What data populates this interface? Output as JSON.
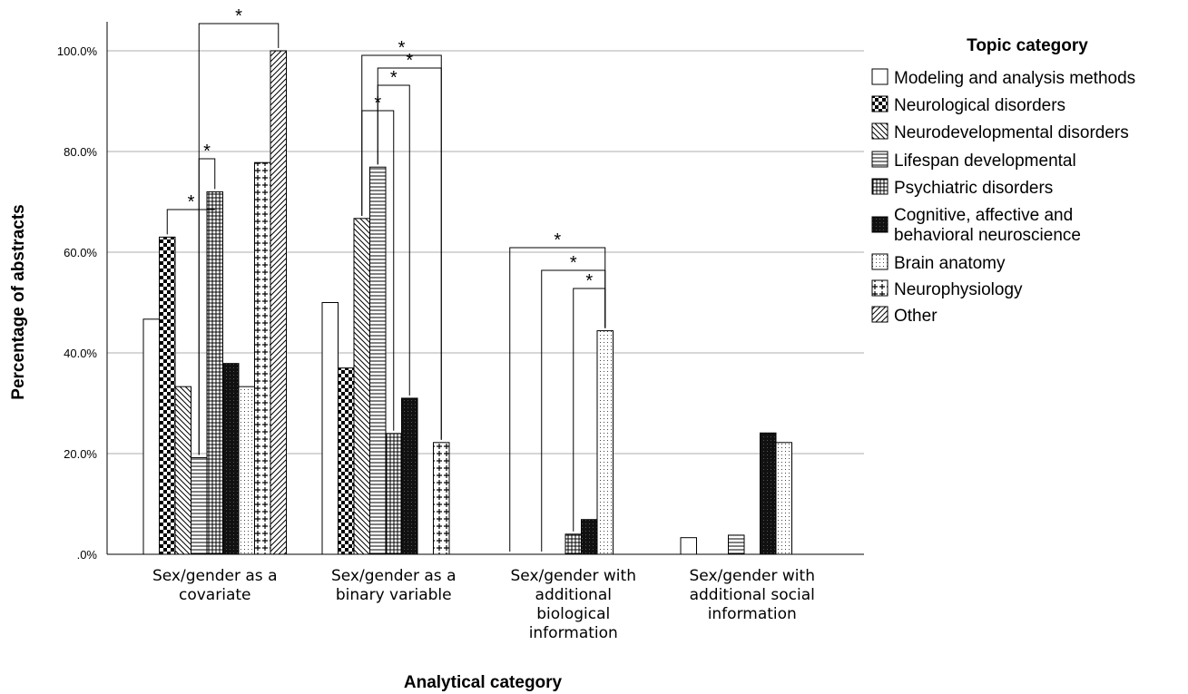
{
  "chart_data": {
    "type": "bar",
    "xlabel": "Analytical category",
    "ylabel": "Percentage of abstracts",
    "ylim": [
      0,
      100
    ],
    "yticks": [
      ".0%",
      "20.0%",
      "40.0%",
      "60.0%",
      "80.0%",
      "100.0%"
    ],
    "grid": true,
    "legend_title": "Topic category",
    "legend_position": "right",
    "categories": [
      [
        "Sex/gender as a",
        "covariate"
      ],
      [
        "Sex/gender as a",
        "binary variable"
      ],
      [
        "Sex/gender with",
        "additional",
        "biological",
        "information"
      ],
      [
        "Sex/gender with",
        "additional social",
        "information"
      ]
    ],
    "series": [
      {
        "name": "Modeling and analysis methods",
        "pattern": "plain",
        "values": [
          46.7,
          50.0,
          0,
          3.3
        ]
      },
      {
        "name": "Neurological disorders",
        "pattern": "checker",
        "values": [
          63.0,
          37.0,
          0,
          0
        ]
      },
      {
        "name": "Neurodevelopmental disorders",
        "pattern": "diag-back",
        "values": [
          33.3,
          66.7,
          0,
          0
        ]
      },
      {
        "name": "Lifespan developmental",
        "pattern": "horiz",
        "values": [
          19.2,
          76.9,
          0,
          3.8
        ]
      },
      {
        "name": "Psychiatric disorders",
        "pattern": "grid",
        "values": [
          72.0,
          24.0,
          4.0,
          0
        ]
      },
      {
        "name": "Cognitive, affective and behavioral neuroscience",
        "label_lines": [
          "Cognitive, affective and",
          "behavioral neuroscience"
        ],
        "pattern": "dark",
        "values": [
          37.9,
          31.0,
          6.9,
          24.1
        ]
      },
      {
        "name": "Brain anatomy",
        "pattern": "dots",
        "values": [
          33.3,
          0,
          44.4,
          22.2
        ]
      },
      {
        "name": "Neurophysiology",
        "pattern": "plus",
        "values": [
          77.8,
          22.2,
          0,
          0
        ]
      },
      {
        "name": "Other",
        "pattern": "diag-fwd",
        "values": [
          100.0,
          0,
          0,
          0
        ]
      }
    ],
    "significance": [
      {
        "category": 0,
        "from": 1,
        "to": 4,
        "label": "*"
      },
      {
        "category": 0,
        "from": 3,
        "to": 4,
        "label": "*"
      },
      {
        "category": 0,
        "from": 3,
        "to": 8,
        "label": "*"
      },
      {
        "category": 1,
        "from": 2,
        "to": 4,
        "label": "*"
      },
      {
        "category": 1,
        "from": 3,
        "to": 5,
        "label": "*"
      },
      {
        "category": 1,
        "from": 3,
        "to": 7,
        "label": "*"
      },
      {
        "category": 1,
        "from": 2,
        "to": 7,
        "label": "*"
      },
      {
        "category": 2,
        "from": 4,
        "to": 6,
        "label": "*"
      },
      {
        "category": 2,
        "from": 2,
        "to": 6,
        "label": "*"
      },
      {
        "category": 2,
        "from": 0,
        "to": 6,
        "label": "*"
      }
    ]
  }
}
